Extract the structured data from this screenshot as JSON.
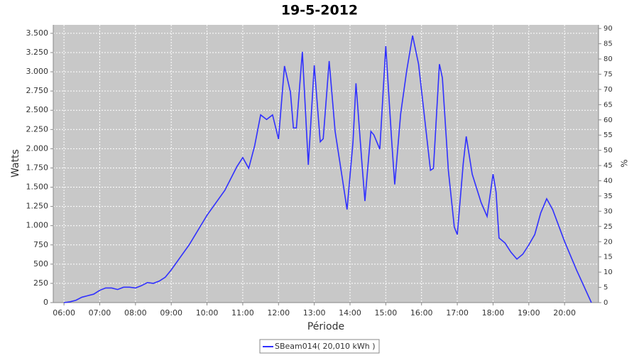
{
  "chart_data": {
    "type": "line",
    "title": "19-5-2012",
    "x_label": "Période",
    "y_label": "Watts",
    "y2_label": "%",
    "xlim": [
      "05:42",
      "20:57"
    ],
    "xticks": [
      "06:00",
      "07:00",
      "08:00",
      "09:00",
      "10:00",
      "11:00",
      "12:00",
      "13:00",
      "14:00",
      "15:00",
      "16:00",
      "17:00",
      "18:00",
      "19:00",
      "20:00"
    ],
    "ylim": [
      0,
      3610
    ],
    "yticks": [
      {
        "value": 0,
        "label": "0"
      },
      {
        "value": 250,
        "label": "250"
      },
      {
        "value": 500,
        "label": "500"
      },
      {
        "value": 750,
        "label": "750"
      },
      {
        "value": 1000,
        "label": "1.000"
      },
      {
        "value": 1250,
        "label": "1.250"
      },
      {
        "value": 1500,
        "label": "1.500"
      },
      {
        "value": 1750,
        "label": "1.750"
      },
      {
        "value": 2000,
        "label": "2.000"
      },
      {
        "value": 2250,
        "label": "2.250"
      },
      {
        "value": 2500,
        "label": "2.500"
      },
      {
        "value": 2750,
        "label": "2.750"
      },
      {
        "value": 3000,
        "label": "3.000"
      },
      {
        "value": 3250,
        "label": "3.250"
      },
      {
        "value": 3500,
        "label": "3.500"
      }
    ],
    "y2lim": [
      0,
      91.2
    ],
    "y2ticks": [
      0,
      5,
      10,
      15,
      20,
      25,
      30,
      35,
      40,
      45,
      50,
      55,
      60,
      65,
      70,
      75,
      80,
      85,
      90
    ],
    "grid": true,
    "x": [
      "06:00",
      "06:10",
      "06:20",
      "06:30",
      "06:40",
      "06:50",
      "07:00",
      "07:10",
      "07:20",
      "07:30",
      "07:40",
      "07:50",
      "08:00",
      "08:10",
      "08:20",
      "08:30",
      "08:40",
      "08:50",
      "09:00",
      "09:30",
      "10:00",
      "10:30",
      "10:50",
      "11:00",
      "11:10",
      "11:20",
      "11:30",
      "11:40",
      "11:50",
      "12:00",
      "12:10",
      "12:20",
      "12:25",
      "12:30",
      "12:40",
      "12:50",
      "13:00",
      "13:10",
      "13:15",
      "13:25",
      "13:35",
      "13:45",
      "13:55",
      "14:05",
      "14:10",
      "14:20",
      "14:25",
      "14:35",
      "14:40",
      "14:50",
      "15:00",
      "15:10",
      "15:15",
      "15:25",
      "15:35",
      "15:45",
      "15:55",
      "16:05",
      "16:15",
      "16:20",
      "16:30",
      "16:35",
      "16:45",
      "16:55",
      "17:00",
      "17:10",
      "17:15",
      "17:25",
      "17:40",
      "17:50",
      "18:00",
      "18:05",
      "18:10",
      "18:20",
      "18:30",
      "18:40",
      "18:50",
      "19:00",
      "19:10",
      "19:20",
      "19:30",
      "19:40",
      "20:00",
      "20:20",
      "20:45"
    ],
    "series": [
      {
        "name": "SBeam014( 20,010 kWh )",
        "color": "#3030ff",
        "values": [
          0,
          10,
          30,
          70,
          90,
          110,
          160,
          190,
          190,
          170,
          200,
          200,
          190,
          220,
          260,
          250,
          280,
          330,
          425,
          750,
          1135,
          1460,
          1765,
          1885,
          1745,
          2040,
          2440,
          2380,
          2440,
          2125,
          3075,
          2735,
          2270,
          2270,
          3260,
          1790,
          3085,
          2090,
          2130,
          3140,
          2225,
          1720,
          1210,
          2090,
          2850,
          1810,
          1320,
          2225,
          2180,
          1995,
          3335,
          2090,
          1535,
          2455,
          3010,
          3470,
          3100,
          2410,
          1720,
          1745,
          3100,
          2920,
          1720,
          980,
          885,
          1810,
          2160,
          1670,
          1300,
          1120,
          1670,
          1440,
          840,
          775,
          655,
          565,
          630,
          750,
          885,
          1165,
          1350,
          1210,
          795,
          425,
          0
        ]
      }
    ]
  }
}
